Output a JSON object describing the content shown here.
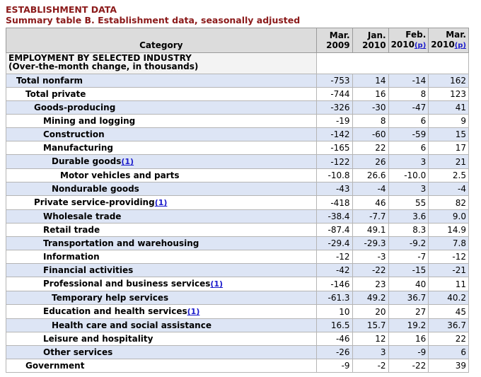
{
  "header": {
    "title": "ESTABLISHMENT DATA",
    "subtitle": "Summary table B. Establishment data, seasonally adjusted"
  },
  "table": {
    "category_header": "Category",
    "columns": [
      {
        "line1": "Mar.",
        "line2": "2009",
        "note": ""
      },
      {
        "line1": "Jan.",
        "line2": "2010",
        "note": ""
      },
      {
        "line1": "Feb.",
        "line2": "2010",
        "note": "(p)"
      },
      {
        "line1": "Mar.",
        "line2": "2010",
        "note": "(p)"
      }
    ],
    "section_line1": "EMPLOYMENT BY SELECTED INDUSTRY",
    "section_line2": "(Over-the-month change, in thousands)",
    "rows": [
      {
        "label": "Total nonfarm",
        "indent": 0,
        "fn": "",
        "values": [
          "-753",
          "14",
          "-14",
          "162"
        ]
      },
      {
        "label": "Total private",
        "indent": 1,
        "fn": "",
        "values": [
          "-744",
          "16",
          "8",
          "123"
        ]
      },
      {
        "label": "Goods-producing",
        "indent": 2,
        "fn": "",
        "values": [
          "-326",
          "-30",
          "-47",
          "41"
        ]
      },
      {
        "label": "Mining and logging",
        "indent": 3,
        "fn": "",
        "values": [
          "-19",
          "8",
          "6",
          "9"
        ]
      },
      {
        "label": "Construction",
        "indent": 3,
        "fn": "",
        "values": [
          "-142",
          "-60",
          "-59",
          "15"
        ]
      },
      {
        "label": "Manufacturing",
        "indent": 3,
        "fn": "",
        "values": [
          "-165",
          "22",
          "6",
          "17"
        ]
      },
      {
        "label": "Durable goods",
        "indent": 4,
        "fn": "(1)",
        "values": [
          "-122",
          "26",
          "3",
          "21"
        ]
      },
      {
        "label": "Motor vehicles and parts",
        "indent": 5,
        "fn": "",
        "values": [
          "-10.8",
          "26.6",
          "-10.0",
          "2.5"
        ]
      },
      {
        "label": "Nondurable goods",
        "indent": 4,
        "fn": "",
        "values": [
          "-43",
          "-4",
          "3",
          "-4"
        ]
      },
      {
        "label": "Private service-providing",
        "indent": 2,
        "fn": "(1)",
        "values": [
          "-418",
          "46",
          "55",
          "82"
        ]
      },
      {
        "label": "Wholesale trade",
        "indent": 3,
        "fn": "",
        "values": [
          "-38.4",
          "-7.7",
          "3.6",
          "9.0"
        ]
      },
      {
        "label": "Retail trade",
        "indent": 3,
        "fn": "",
        "values": [
          "-87.4",
          "49.1",
          "8.3",
          "14.9"
        ]
      },
      {
        "label": "Transportation and warehousing",
        "indent": 3,
        "fn": "",
        "values": [
          "-29.4",
          "-29.3",
          "-9.2",
          "7.8"
        ]
      },
      {
        "label": "Information",
        "indent": 3,
        "fn": "",
        "values": [
          "-12",
          "-3",
          "-7",
          "-12"
        ]
      },
      {
        "label": "Financial activities",
        "indent": 3,
        "fn": "",
        "values": [
          "-42",
          "-22",
          "-15",
          "-21"
        ]
      },
      {
        "label": "Professional and business services",
        "indent": 3,
        "fn": "(1)",
        "values": [
          "-146",
          "23",
          "40",
          "11"
        ]
      },
      {
        "label": "Temporary help services",
        "indent": 4,
        "fn": "",
        "values": [
          "-61.3",
          "49.2",
          "36.7",
          "40.2"
        ]
      },
      {
        "label": "Education and health services",
        "indent": 3,
        "fn": "(1)",
        "values": [
          "10",
          "20",
          "27",
          "45"
        ]
      },
      {
        "label": "Health care and social assistance",
        "indent": 4,
        "fn": "",
        "values": [
          "16.5",
          "15.7",
          "19.2",
          "36.7"
        ]
      },
      {
        "label": "Leisure and hospitality",
        "indent": 3,
        "fn": "",
        "values": [
          "-46",
          "12",
          "16",
          "22"
        ]
      },
      {
        "label": "Other services",
        "indent": 3,
        "fn": "",
        "values": [
          "-26",
          "3",
          "-9",
          "6"
        ]
      },
      {
        "label": "Government",
        "indent": 1,
        "fn": "",
        "values": [
          "-9",
          "-2",
          "-22",
          "39"
        ]
      }
    ]
  }
}
